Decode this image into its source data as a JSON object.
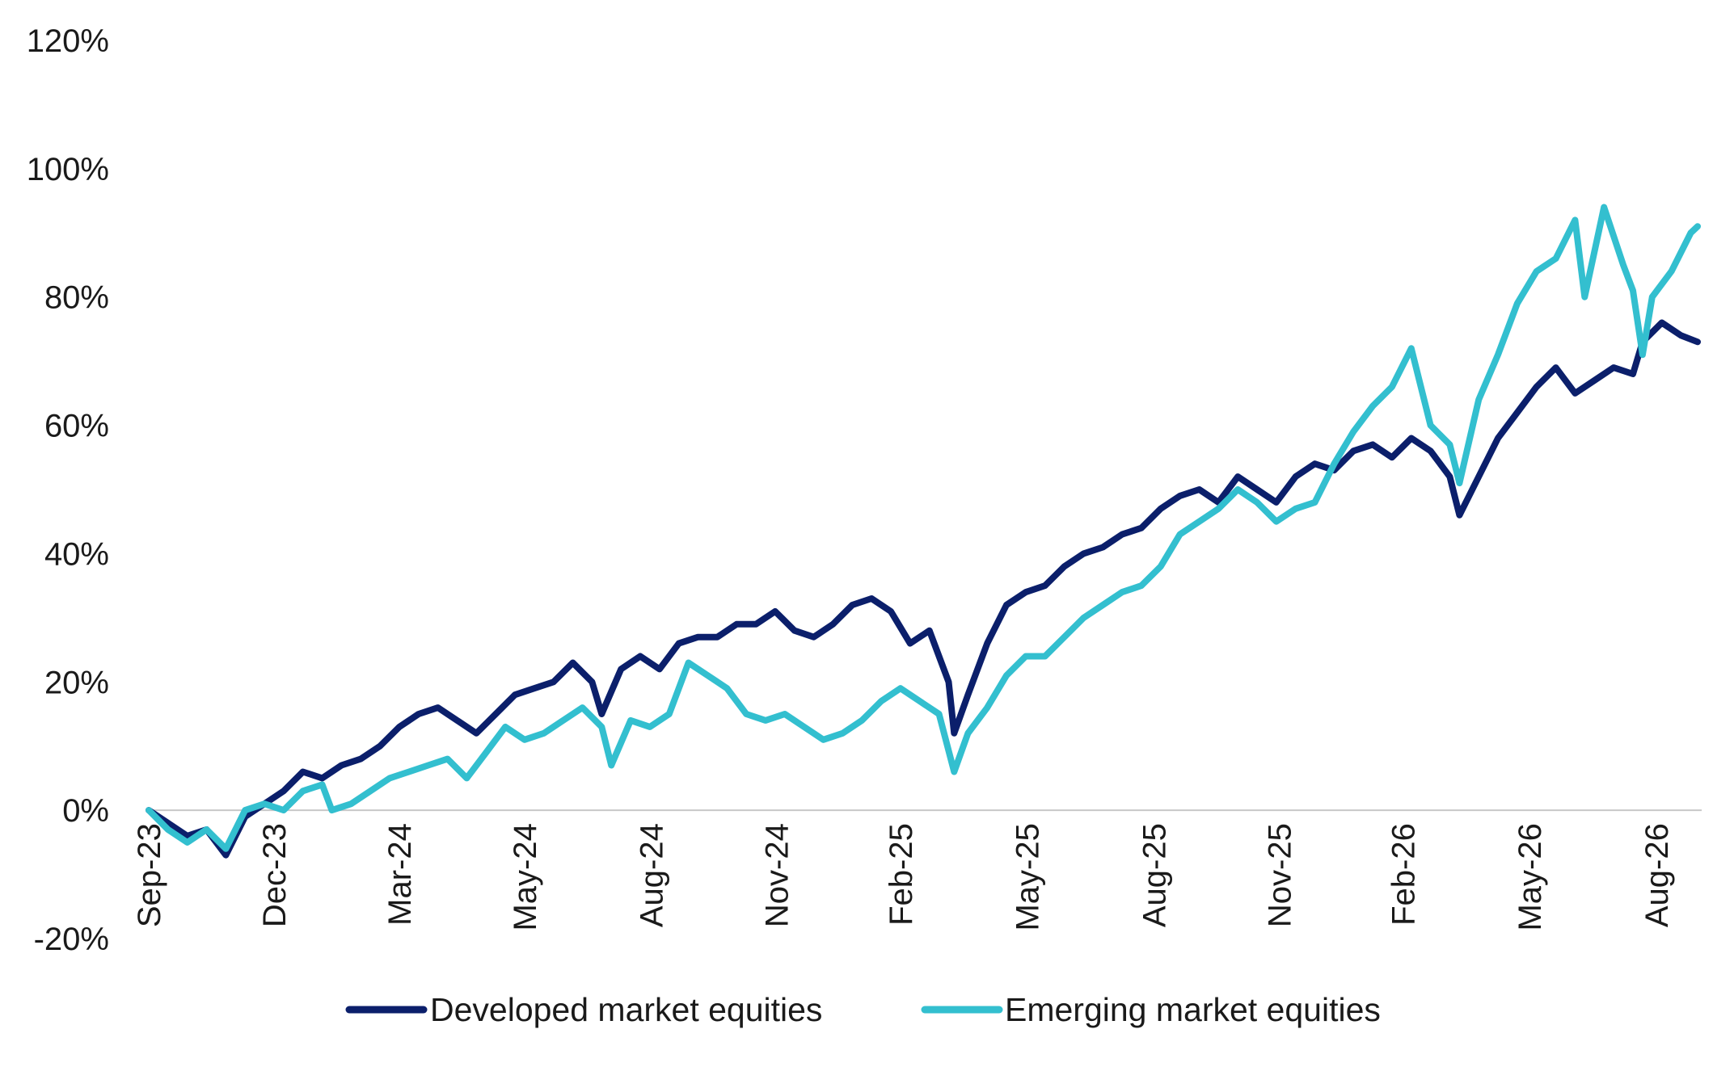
{
  "chart_data": {
    "type": "line",
    "title": "",
    "xlabel": "",
    "ylabel": "",
    "ylim": [
      -20,
      120
    ],
    "y_ticks": [
      -20,
      0,
      20,
      40,
      60,
      80,
      100,
      120
    ],
    "y_tick_labels": [
      "-20%",
      "0%",
      "20%",
      "40%",
      "60%",
      "80%",
      "100%",
      "120%"
    ],
    "x_tick_labels": [
      "Sep-23",
      "Dec-23",
      "Mar-24",
      "May-24",
      "Aug-24",
      "Nov-24",
      "Feb-25",
      "May-25",
      "Aug-25",
      "Nov-25",
      "Feb-26",
      "May-26",
      "Aug-26"
    ],
    "x_tick_dates": [
      "2023-09-01",
      "2023-12-01",
      "2024-03-01",
      "2024-05-31",
      "2024-08-31",
      "2024-11-30",
      "2025-02-28",
      "2025-05-31",
      "2025-08-31",
      "2025-11-30",
      "2026-02-28",
      "2026-05-31",
      "2026-08-31"
    ],
    "x_range": [
      "2023-09-01",
      "2026-09-30"
    ],
    "grid": false,
    "zero_line": true,
    "legend_position": "bottom",
    "series": [
      {
        "name": "Developed market equities",
        "color": "#0b1f6b",
        "points": [
          [
            "2023-09-01",
            0
          ],
          [
            "2023-09-15",
            -2
          ],
          [
            "2023-09-29",
            -4
          ],
          [
            "2023-10-13",
            -3
          ],
          [
            "2023-10-27",
            -7
          ],
          [
            "2023-11-10",
            -1
          ],
          [
            "2023-11-24",
            1
          ],
          [
            "2023-12-08",
            3
          ],
          [
            "2023-12-22",
            6
          ],
          [
            "2024-01-05",
            5
          ],
          [
            "2024-01-19",
            7
          ],
          [
            "2024-02-02",
            8
          ],
          [
            "2024-02-16",
            10
          ],
          [
            "2024-03-01",
            13
          ],
          [
            "2024-03-15",
            15
          ],
          [
            "2024-03-29",
            16
          ],
          [
            "2024-04-12",
            14
          ],
          [
            "2024-04-26",
            12
          ],
          [
            "2024-05-10",
            15
          ],
          [
            "2024-05-24",
            18
          ],
          [
            "2024-06-07",
            19
          ],
          [
            "2024-06-21",
            20
          ],
          [
            "2024-07-05",
            23
          ],
          [
            "2024-07-19",
            20
          ],
          [
            "2024-07-26",
            15
          ],
          [
            "2024-08-09",
            22
          ],
          [
            "2024-08-23",
            24
          ],
          [
            "2024-09-06",
            22
          ],
          [
            "2024-09-20",
            26
          ],
          [
            "2024-10-04",
            27
          ],
          [
            "2024-10-18",
            27
          ],
          [
            "2024-11-01",
            29
          ],
          [
            "2024-11-15",
            29
          ],
          [
            "2024-11-29",
            31
          ],
          [
            "2024-12-13",
            28
          ],
          [
            "2024-12-27",
            27
          ],
          [
            "2025-01-10",
            29
          ],
          [
            "2025-01-24",
            32
          ],
          [
            "2025-02-07",
            33
          ],
          [
            "2025-02-21",
            31
          ],
          [
            "2025-03-07",
            26
          ],
          [
            "2025-03-21",
            28
          ],
          [
            "2025-04-04",
            20
          ],
          [
            "2025-04-08",
            12
          ],
          [
            "2025-04-18",
            18
          ],
          [
            "2025-05-02",
            26
          ],
          [
            "2025-05-16",
            32
          ],
          [
            "2025-05-30",
            34
          ],
          [
            "2025-06-13",
            35
          ],
          [
            "2025-06-27",
            38
          ],
          [
            "2025-07-11",
            40
          ],
          [
            "2025-07-25",
            41
          ],
          [
            "2025-08-08",
            43
          ],
          [
            "2025-08-22",
            44
          ],
          [
            "2025-09-05",
            47
          ],
          [
            "2025-09-19",
            49
          ],
          [
            "2025-10-03",
            50
          ],
          [
            "2025-10-17",
            48
          ],
          [
            "2025-10-31",
            52
          ],
          [
            "2025-11-14",
            50
          ],
          [
            "2025-11-28",
            48
          ],
          [
            "2025-12-12",
            52
          ],
          [
            "2025-12-26",
            54
          ],
          [
            "2026-01-09",
            53
          ],
          [
            "2026-01-23",
            56
          ],
          [
            "2026-02-06",
            57
          ],
          [
            "2026-02-20",
            55
          ],
          [
            "2026-03-06",
            58
          ],
          [
            "2026-03-20",
            56
          ],
          [
            "2026-04-03",
            52
          ],
          [
            "2026-04-10",
            46
          ],
          [
            "2026-04-24",
            52
          ],
          [
            "2026-05-08",
            58
          ],
          [
            "2026-05-22",
            62
          ],
          [
            "2026-06-05",
            66
          ],
          [
            "2026-06-19",
            69
          ],
          [
            "2026-07-03",
            65
          ],
          [
            "2026-07-17",
            67
          ],
          [
            "2026-07-31",
            69
          ],
          [
            "2026-08-14",
            68
          ],
          [
            "2026-08-21",
            73
          ],
          [
            "2026-09-04",
            76
          ],
          [
            "2026-09-18",
            74
          ],
          [
            "2026-09-30",
            73
          ]
        ]
      },
      {
        "name": "Emerging market equities",
        "color": "#33bfcf",
        "points": [
          [
            "2023-09-01",
            0
          ],
          [
            "2023-09-15",
            -3
          ],
          [
            "2023-09-29",
            -5
          ],
          [
            "2023-10-13",
            -3
          ],
          [
            "2023-10-27",
            -6
          ],
          [
            "2023-11-10",
            0
          ],
          [
            "2023-11-24",
            1
          ],
          [
            "2023-12-08",
            0
          ],
          [
            "2023-12-22",
            3
          ],
          [
            "2024-01-05",
            4
          ],
          [
            "2024-01-12",
            0
          ],
          [
            "2024-01-26",
            1
          ],
          [
            "2024-02-09",
            3
          ],
          [
            "2024-02-23",
            5
          ],
          [
            "2024-03-08",
            6
          ],
          [
            "2024-03-22",
            7
          ],
          [
            "2024-04-05",
            8
          ],
          [
            "2024-04-19",
            5
          ],
          [
            "2024-05-03",
            9
          ],
          [
            "2024-05-17",
            13
          ],
          [
            "2024-05-31",
            11
          ],
          [
            "2024-06-14",
            12
          ],
          [
            "2024-06-28",
            14
          ],
          [
            "2024-07-12",
            16
          ],
          [
            "2024-07-26",
            13
          ],
          [
            "2024-08-02",
            7
          ],
          [
            "2024-08-16",
            14
          ],
          [
            "2024-08-30",
            13
          ],
          [
            "2024-09-13",
            15
          ],
          [
            "2024-09-27",
            23
          ],
          [
            "2024-10-11",
            21
          ],
          [
            "2024-10-25",
            19
          ],
          [
            "2024-11-08",
            15
          ],
          [
            "2024-11-22",
            14
          ],
          [
            "2024-12-06",
            15
          ],
          [
            "2024-12-20",
            13
          ],
          [
            "2025-01-03",
            11
          ],
          [
            "2025-01-17",
            12
          ],
          [
            "2025-01-31",
            14
          ],
          [
            "2025-02-14",
            17
          ],
          [
            "2025-02-28",
            19
          ],
          [
            "2025-03-14",
            17
          ],
          [
            "2025-03-28",
            15
          ],
          [
            "2025-04-08",
            6
          ],
          [
            "2025-04-18",
            12
          ],
          [
            "2025-05-02",
            16
          ],
          [
            "2025-05-16",
            21
          ],
          [
            "2025-05-30",
            24
          ],
          [
            "2025-06-13",
            24
          ],
          [
            "2025-06-27",
            27
          ],
          [
            "2025-07-11",
            30
          ],
          [
            "2025-07-25",
            32
          ],
          [
            "2025-08-08",
            34
          ],
          [
            "2025-08-22",
            35
          ],
          [
            "2025-09-05",
            38
          ],
          [
            "2025-09-19",
            43
          ],
          [
            "2025-10-03",
            45
          ],
          [
            "2025-10-17",
            47
          ],
          [
            "2025-10-31",
            50
          ],
          [
            "2025-11-14",
            48
          ],
          [
            "2025-11-28",
            45
          ],
          [
            "2025-12-12",
            47
          ],
          [
            "2025-12-26",
            48
          ],
          [
            "2026-01-09",
            54
          ],
          [
            "2026-01-23",
            59
          ],
          [
            "2026-02-06",
            63
          ],
          [
            "2026-02-20",
            66
          ],
          [
            "2026-03-06",
            72
          ],
          [
            "2026-03-20",
            60
          ],
          [
            "2026-04-03",
            57
          ],
          [
            "2026-04-10",
            51
          ],
          [
            "2026-04-24",
            64
          ],
          [
            "2026-05-08",
            71
          ],
          [
            "2026-05-22",
            79
          ],
          [
            "2026-06-05",
            84
          ],
          [
            "2026-06-19",
            86
          ],
          [
            "2026-07-03",
            92
          ],
          [
            "2026-07-10",
            80
          ],
          [
            "2026-07-24",
            94
          ],
          [
            "2026-08-07",
            85
          ],
          [
            "2026-08-14",
            81
          ],
          [
            "2026-08-21",
            71
          ],
          [
            "2026-08-28",
            80
          ],
          [
            "2026-09-11",
            84
          ],
          [
            "2026-09-25",
            90
          ],
          [
            "2026-09-30",
            91
          ]
        ]
      }
    ]
  }
}
